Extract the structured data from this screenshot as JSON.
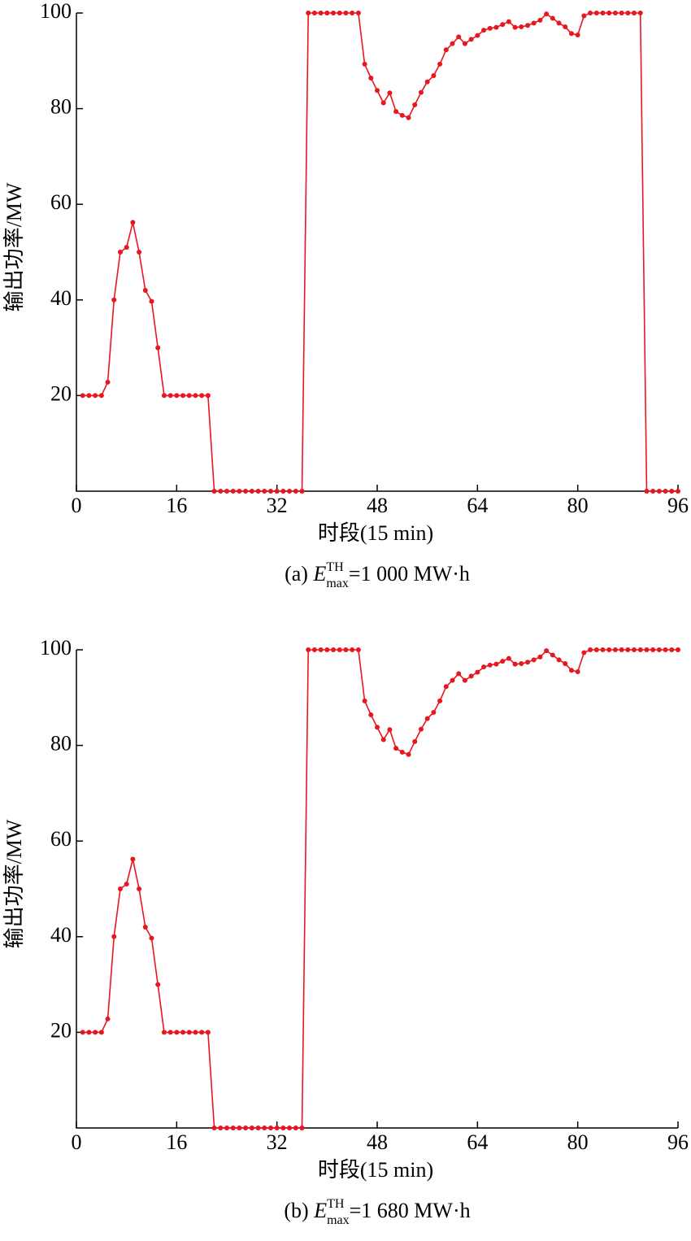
{
  "chart_data": [
    {
      "type": "line",
      "color": "#e8161e",
      "x": [
        1,
        2,
        3,
        4,
        5,
        6,
        7,
        8,
        9,
        10,
        11,
        12,
        13,
        14,
        15,
        16,
        17,
        18,
        19,
        20,
        21,
        22,
        23,
        24,
        25,
        26,
        27,
        28,
        29,
        30,
        31,
        32,
        33,
        34,
        35,
        36,
        37,
        38,
        39,
        40,
        41,
        42,
        43,
        44,
        45,
        46,
        47,
        48,
        49,
        50,
        51,
        52,
        53,
        54,
        55,
        56,
        57,
        58,
        59,
        60,
        61,
        62,
        63,
        64,
        65,
        66,
        67,
        68,
        69,
        70,
        71,
        72,
        73,
        74,
        75,
        76,
        77,
        78,
        79,
        80,
        81,
        82,
        83,
        84,
        85,
        86,
        87,
        88,
        89,
        90,
        91,
        92,
        93,
        94,
        95,
        96
      ],
      "values": [
        20,
        20,
        20,
        20,
        22.8,
        40,
        50,
        51,
        56.2,
        50,
        42,
        39.7,
        30,
        20,
        20,
        20,
        20,
        20,
        20,
        20,
        20,
        0,
        0,
        0,
        0,
        0,
        0,
        0,
        0,
        0,
        0,
        0,
        0,
        0,
        0,
        0,
        100,
        100,
        100,
        100,
        100,
        100,
        100,
        100,
        100,
        89.3,
        86.4,
        83.8,
        81.2,
        83.3,
        79.4,
        78.6,
        78.1,
        80.8,
        83.4,
        85.6,
        86.9,
        89.3,
        92.3,
        93.6,
        95.0,
        93.6,
        94.5,
        95.3,
        96.4,
        96.8,
        97.0,
        97.6,
        98.2,
        97.0,
        97.1,
        97.4,
        97.9,
        98.5,
        99.8,
        98.9,
        97.9,
        97.1,
        95.7,
        95.4,
        99.4,
        100,
        100,
        100,
        100,
        100,
        100,
        100,
        100,
        100,
        0,
        0,
        0,
        0,
        0,
        0
      ],
      "xlim": [
        0,
        96
      ],
      "xticks": [
        0,
        16,
        32,
        48,
        64,
        80,
        96
      ],
      "ylim": [
        0,
        100
      ],
      "yticks": [
        20,
        40,
        60,
        80,
        100
      ],
      "xlabel": "时段(15 min)",
      "ylabel": "输出功率/MW",
      "caption": {
        "prefix": "(a) ",
        "symbol": "E",
        "superscript": "TH",
        "subscript": "max",
        "suffix": "=1 000 MW·h"
      }
    },
    {
      "type": "line",
      "color": "#e8161e",
      "x": [
        1,
        2,
        3,
        4,
        5,
        6,
        7,
        8,
        9,
        10,
        11,
        12,
        13,
        14,
        15,
        16,
        17,
        18,
        19,
        20,
        21,
        22,
        23,
        24,
        25,
        26,
        27,
        28,
        29,
        30,
        31,
        32,
        33,
        34,
        35,
        36,
        37,
        38,
        39,
        40,
        41,
        42,
        43,
        44,
        45,
        46,
        47,
        48,
        49,
        50,
        51,
        52,
        53,
        54,
        55,
        56,
        57,
        58,
        59,
        60,
        61,
        62,
        63,
        64,
        65,
        66,
        67,
        68,
        69,
        70,
        71,
        72,
        73,
        74,
        75,
        76,
        77,
        78,
        79,
        80,
        81,
        82,
        83,
        84,
        85,
        86,
        87,
        88,
        89,
        90,
        91,
        92,
        93,
        94,
        95,
        96
      ],
      "values": [
        20,
        20,
        20,
        20,
        22.8,
        40,
        50,
        51,
        56.2,
        50,
        42,
        39.7,
        30,
        20,
        20,
        20,
        20,
        20,
        20,
        20,
        20,
        0,
        0,
        0,
        0,
        0,
        0,
        0,
        0,
        0,
        0,
        0,
        0,
        0,
        0,
        0,
        100,
        100,
        100,
        100,
        100,
        100,
        100,
        100,
        100,
        89.3,
        86.4,
        83.8,
        81.2,
        83.3,
        79.4,
        78.6,
        78.1,
        80.8,
        83.4,
        85.6,
        86.9,
        89.3,
        92.3,
        93.6,
        95.0,
        93.6,
        94.5,
        95.3,
        96.4,
        96.8,
        97.0,
        97.6,
        98.2,
        97.0,
        97.1,
        97.4,
        97.9,
        98.5,
        99.8,
        98.9,
        97.9,
        97.1,
        95.7,
        95.4,
        99.4,
        100,
        100,
        100,
        100,
        100,
        100,
        100,
        100,
        100,
        100,
        100,
        100,
        100,
        100,
        100
      ],
      "xlim": [
        0,
        96
      ],
      "xticks": [
        0,
        16,
        32,
        48,
        64,
        80,
        96
      ],
      "ylim": [
        0,
        100
      ],
      "yticks": [
        20,
        40,
        60,
        80,
        100
      ],
      "xlabel": "时段(15 min)",
      "ylabel": "输出功率/MW",
      "caption": {
        "prefix": "(b) ",
        "symbol": "E",
        "superscript": "TH",
        "subscript": "max",
        "suffix": "=1 680 MW·h"
      }
    }
  ]
}
